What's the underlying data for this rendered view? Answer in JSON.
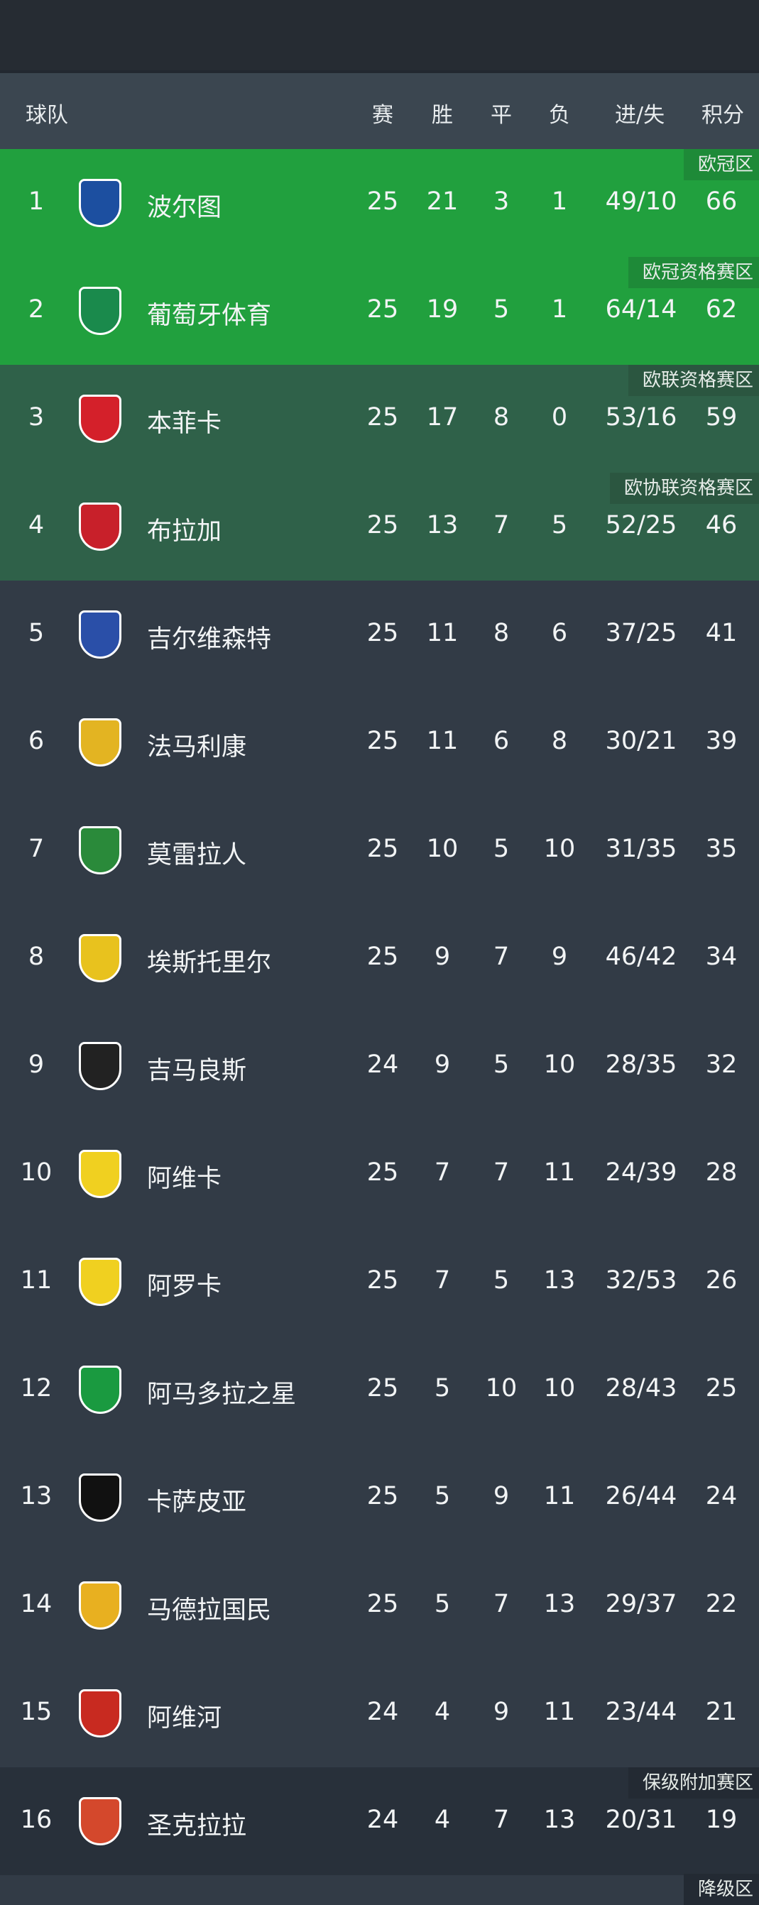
{
  "header": {
    "team": "球队",
    "played": "赛",
    "won": "胜",
    "drawn": "平",
    "lost": "负",
    "goals": "进/失",
    "points": "积分"
  },
  "colors": {
    "ucl": "#21a03e",
    "europe": "#2f6149",
    "default": "#323b46",
    "relegation": "#28303a"
  },
  "rows": [
    {
      "rank": "1",
      "team": "波尔图",
      "p": "25",
      "w": "21",
      "d": "3",
      "l": "1",
      "g": "49/10",
      "pts": "66",
      "zone": "欧冠区",
      "z": "z1",
      "logo": "#1c4fa0"
    },
    {
      "rank": "2",
      "team": "葡萄牙体育",
      "p": "25",
      "w": "19",
      "d": "5",
      "l": "1",
      "g": "64/14",
      "pts": "62",
      "zone": "欧冠资格赛区",
      "z": "z1",
      "logo": "#1a8a4c"
    },
    {
      "rank": "3",
      "team": "本菲卡",
      "p": "25",
      "w": "17",
      "d": "8",
      "l": "0",
      "g": "53/16",
      "pts": "59",
      "zone": "欧联资格赛区",
      "z": "z2",
      "logo": "#d4202a"
    },
    {
      "rank": "4",
      "team": "布拉加",
      "p": "25",
      "w": "13",
      "d": "7",
      "l": "5",
      "g": "52/25",
      "pts": "46",
      "zone": "欧协联资格赛区",
      "z": "z2",
      "logo": "#c8202a"
    },
    {
      "rank": "5",
      "team": "吉尔维森特",
      "p": "25",
      "w": "11",
      "d": "8",
      "l": "6",
      "g": "37/25",
      "pts": "41",
      "zone": "",
      "z": "z0",
      "logo": "#2a4fa8"
    },
    {
      "rank": "6",
      "team": "法马利康",
      "p": "25",
      "w": "11",
      "d": "6",
      "l": "8",
      "g": "30/21",
      "pts": "39",
      "zone": "",
      "z": "z0",
      "logo": "#e3b422"
    },
    {
      "rank": "7",
      "team": "莫雷拉人",
      "p": "25",
      "w": "10",
      "d": "5",
      "l": "10",
      "g": "31/35",
      "pts": "35",
      "zone": "",
      "z": "z0",
      "logo": "#2a8a3a"
    },
    {
      "rank": "8",
      "team": "埃斯托里尔",
      "p": "25",
      "w": "9",
      "d": "7",
      "l": "9",
      "g": "46/42",
      "pts": "34",
      "zone": "",
      "z": "z0",
      "logo": "#e8c21e"
    },
    {
      "rank": "9",
      "team": "吉马良斯",
      "p": "24",
      "w": "9",
      "d": "5",
      "l": "10",
      "g": "28/35",
      "pts": "32",
      "zone": "",
      "z": "z0",
      "logo": "#222222"
    },
    {
      "rank": "10",
      "team": "阿维卡",
      "p": "25",
      "w": "7",
      "d": "7",
      "l": "11",
      "g": "24/39",
      "pts": "28",
      "zone": "",
      "z": "z0",
      "logo": "#f0d020"
    },
    {
      "rank": "11",
      "team": "阿罗卡",
      "p": "25",
      "w": "7",
      "d": "5",
      "l": "13",
      "g": "32/53",
      "pts": "26",
      "zone": "",
      "z": "z0",
      "logo": "#f0d020"
    },
    {
      "rank": "12",
      "team": "阿马多拉之星",
      "p": "25",
      "w": "5",
      "d": "10",
      "l": "10",
      "g": "28/43",
      "pts": "25",
      "zone": "",
      "z": "z0",
      "logo": "#1a9a40"
    },
    {
      "rank": "13",
      "team": "卡萨皮亚",
      "p": "25",
      "w": "5",
      "d": "9",
      "l": "11",
      "g": "26/44",
      "pts": "24",
      "zone": "",
      "z": "z0",
      "logo": "#111111"
    },
    {
      "rank": "14",
      "team": "马德拉国民",
      "p": "25",
      "w": "5",
      "d": "7",
      "l": "13",
      "g": "29/37",
      "pts": "22",
      "zone": "",
      "z": "z0",
      "logo": "#e8b020"
    },
    {
      "rank": "15",
      "team": "阿维河",
      "p": "24",
      "w": "4",
      "d": "9",
      "l": "11",
      "g": "23/44",
      "pts": "21",
      "zone": "",
      "z": "z0",
      "logo": "#c82a20"
    },
    {
      "rank": "16",
      "team": "圣克拉拉",
      "p": "24",
      "w": "4",
      "d": "7",
      "l": "13",
      "g": "20/31",
      "pts": "19",
      "zone": "保级附加赛区",
      "z": "z3",
      "logo": "#d4482c"
    }
  ],
  "next_zone": "降级区"
}
